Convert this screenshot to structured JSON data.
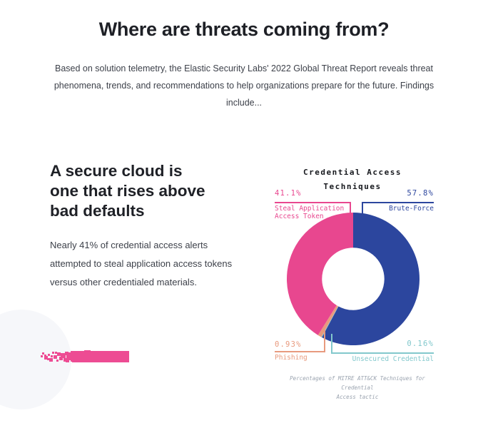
{
  "page": {
    "title": "Where are threats coming from?",
    "intro": "Based on solution telemetry, the Elastic Security Labs' 2022 Global Threat Report reveals threat phenomena, trends, and recommendations to help organizations prepare for the future. Findings include..."
  },
  "section": {
    "heading": "A secure cloud is one that rises above bad defaults",
    "heading_lines": [
      "A secure cloud is",
      "one that rises above",
      "bad defaults"
    ],
    "body": "Nearly 41% of credential access alerts attempted to steal application access tokens versus other credentialed materials."
  },
  "decor": {
    "bar_color": "#ED4C93",
    "circle_color": "#F6F7FA"
  },
  "chart_data": {
    "type": "pie",
    "subtype": "donut",
    "title": "Credential Access Techniques",
    "title_lines": [
      "Credential Access",
      "Techniques"
    ],
    "caption": "Percentages of MITRE ATT&CK Techniques for Credential Access tactic",
    "caption_lines": [
      "Percentages of MITRE ATT&CK Techniques for Credential",
      "Access tactic"
    ],
    "start_angle_deg": 0,
    "direction": "clockwise",
    "outer_radius": 93,
    "inner_radius_ratio": 0.47,
    "slices": [
      {
        "label": "Brute-Force",
        "value_pct": 57.8,
        "display": "57.8%",
        "color": "#2C469E"
      },
      {
        "label": "Unsecured Credential",
        "value_pct": 0.16,
        "display": "0.16%",
        "color": "#82C8CC"
      },
      {
        "label": "Phishing",
        "value_pct": 0.93,
        "display": "0.93%",
        "color": "#E89A7E"
      },
      {
        "label": "Steal Application Access Token",
        "value_pct": 41.1,
        "display": "41.1%",
        "color": "#E8478F"
      }
    ]
  }
}
